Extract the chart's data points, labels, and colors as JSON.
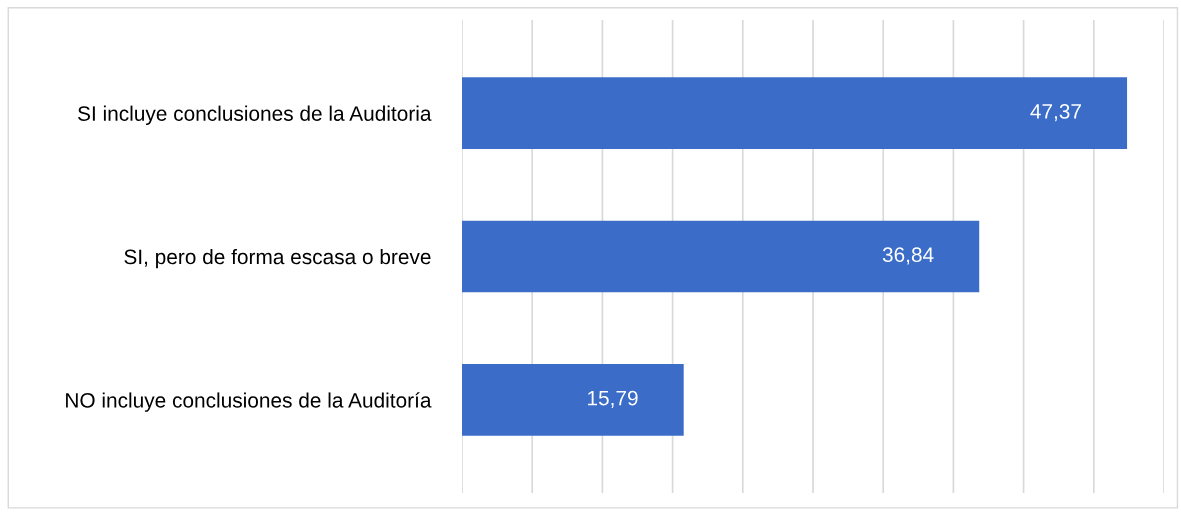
{
  "chart_data": {
    "type": "bar",
    "orientation": "horizontal",
    "categories": [
      "SI incluye conclusiones de la Auditoria",
      "SI, pero de forma escasa o breve",
      "NO incluye conclusiones de la Auditoría"
    ],
    "values": [
      47.37,
      36.84,
      15.79
    ],
    "value_labels": [
      "47,37",
      "36,84",
      "15,79"
    ],
    "color": "#3a6cc8",
    "xlim": [
      0,
      50
    ],
    "xticks": [
      {
        "value": 0,
        "label": null
      },
      {
        "value": 5,
        "label": null
      },
      {
        "value": 10,
        "label": null
      },
      {
        "value": 15,
        "label": null
      },
      {
        "value": 20,
        "label": null
      },
      {
        "value": 25,
        "label": null
      },
      {
        "value": 30,
        "label": null
      },
      {
        "value": 35,
        "label": null
      },
      {
        "value": 40,
        "label": null
      },
      {
        "value": 45,
        "label": null
      },
      {
        "value": 50,
        "label": null
      }
    ],
    "tick_labels": "y",
    "grid": "x",
    "legend": false
  }
}
